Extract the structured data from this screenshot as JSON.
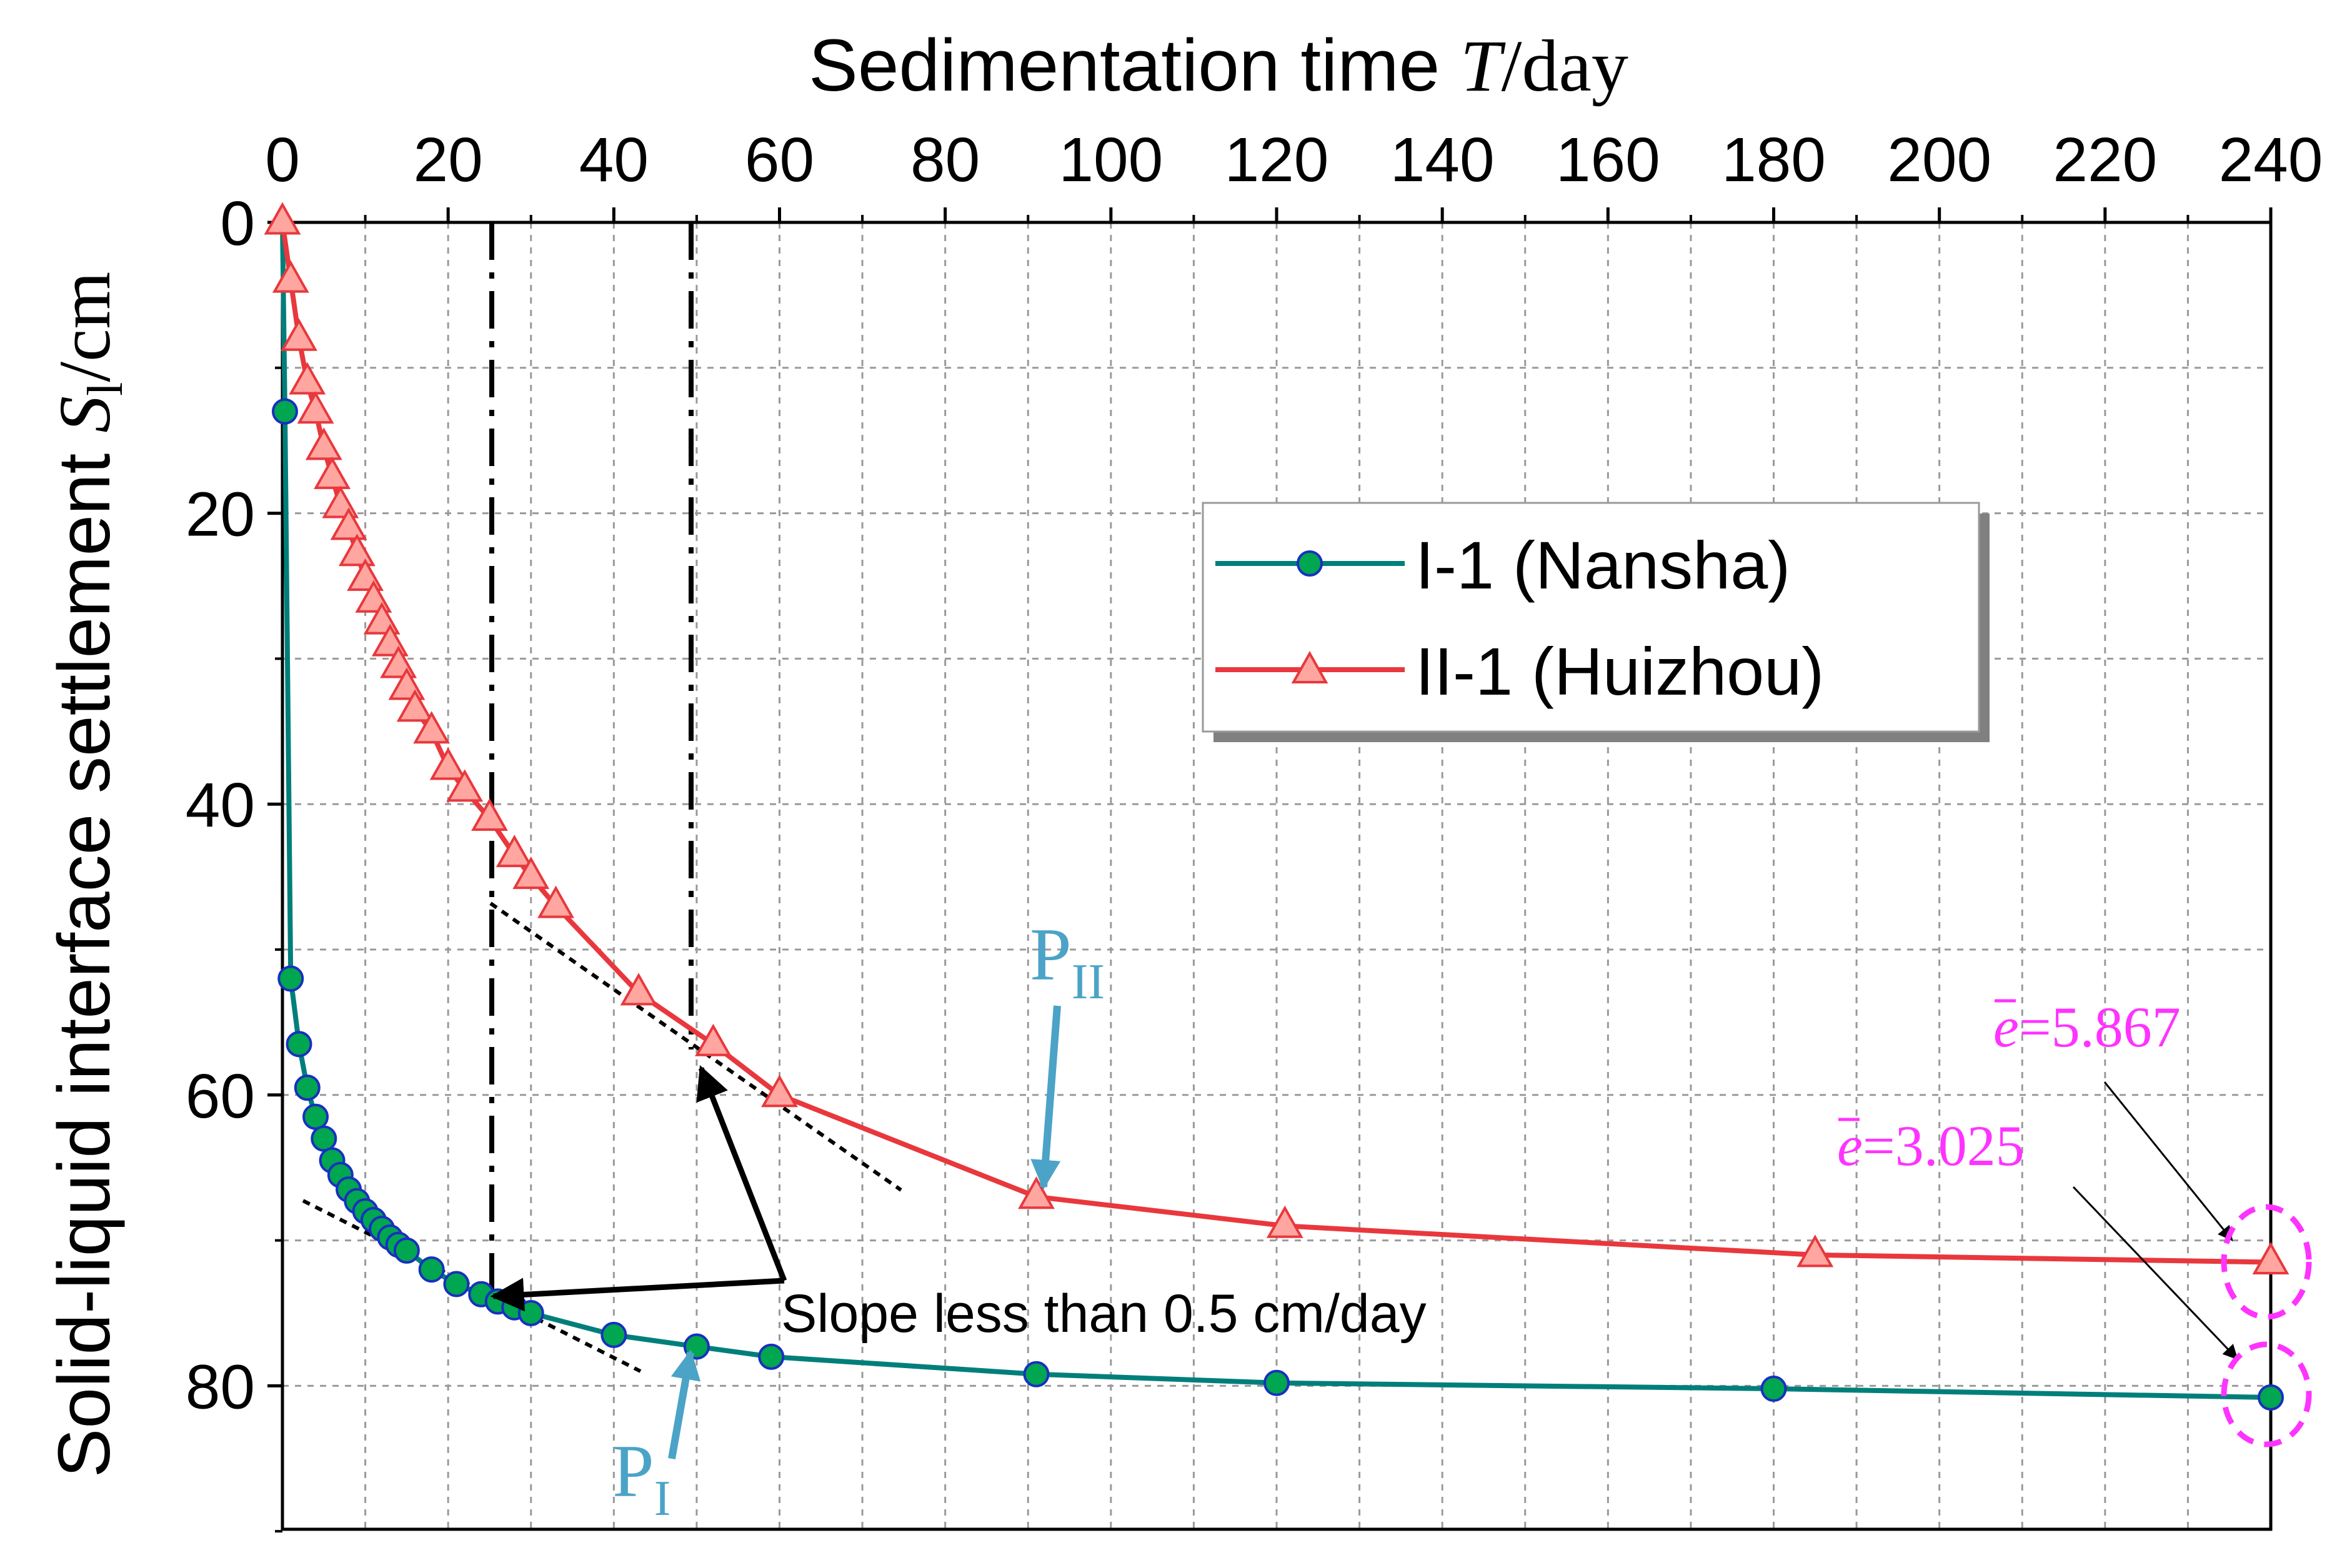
{
  "chart_data": {
    "type": "line",
    "title": "",
    "xlabel_prefix": "Sedimentation time ",
    "xlabel_var": "T",
    "xlabel_unit": "/day",
    "ylabel_prefix": "Solid-liquid interface settlement ",
    "ylabel_var": "S",
    "ylabel_sub": "l",
    "ylabel_unit": "/cm",
    "xlim": [
      0,
      240
    ],
    "ylim": [
      0,
      90
    ],
    "y_inverted": true,
    "x_axis_position": "top",
    "x_ticks": [
      0,
      20,
      40,
      60,
      80,
      100,
      120,
      140,
      160,
      180,
      200,
      220,
      240
    ],
    "x_tick_labels": [
      "0",
      "20",
      "40",
      "60",
      "80",
      "100",
      "120",
      "140",
      "160",
      "180",
      "200",
      "220",
      "240"
    ],
    "y_ticks": [
      0,
      20,
      40,
      60,
      80
    ],
    "y_tick_labels": [
      "0",
      "20",
      "40",
      "60",
      "80"
    ],
    "grid": true,
    "legend_position": "upper-center-right",
    "series": [
      {
        "name": "I-1 (Nansha)",
        "color": "#007F7A",
        "marker": "circle",
        "marker_color": "#00A650",
        "x": [
          0.3,
          1,
          2,
          3,
          4,
          5,
          6,
          7,
          8,
          9,
          10,
          11,
          12,
          13,
          14,
          15,
          18,
          21,
          24,
          26,
          28,
          30,
          40,
          50,
          59,
          91,
          120,
          180,
          240
        ],
        "y": [
          13,
          52,
          56.5,
          59.5,
          61.5,
          63,
          64.5,
          65.5,
          66.5,
          67.3,
          68,
          68.6,
          69.2,
          69.8,
          70.3,
          70.7,
          72,
          73,
          73.7,
          74.2,
          74.6,
          75,
          76.5,
          77.3,
          78,
          79.2,
          79.8,
          80.2,
          80.8
        ]
      },
      {
        "name": "II-1 (Huizhou)",
        "color": "#E8383D",
        "marker": "triangle",
        "marker_color": "#FFA6A0",
        "x": [
          0,
          1,
          2,
          3,
          4,
          5,
          6,
          7,
          8,
          9,
          10,
          11,
          12,
          13,
          14,
          15,
          16,
          18,
          20,
          22,
          25,
          28,
          30,
          33,
          43,
          52,
          60,
          91,
          121,
          185,
          240
        ],
        "y": [
          0,
          4,
          8,
          11,
          13,
          15.5,
          17.5,
          19.5,
          21,
          22.8,
          24.5,
          26,
          27.5,
          29,
          30.5,
          32,
          33.5,
          35,
          37.5,
          39,
          41,
          43.5,
          45,
          47,
          53,
          56.5,
          60,
          67,
          69,
          71,
          71.5
        ]
      }
    ],
    "annotations": {
      "p1": {
        "main": "P",
        "sub": "I",
        "color": "#4BA3C7"
      },
      "p2": {
        "main": "P",
        "sub": "II",
        "color": "#4BA3C7"
      },
      "slope": {
        "text": "Slope less than 0.5 cm/day",
        "color": "#000000"
      },
      "e1": {
        "var": "e",
        "text": "=5.867",
        "color": "#FF33FF"
      },
      "e2": {
        "var": "e",
        "text": "=3.025",
        "color": "#FF33FF"
      }
    }
  }
}
